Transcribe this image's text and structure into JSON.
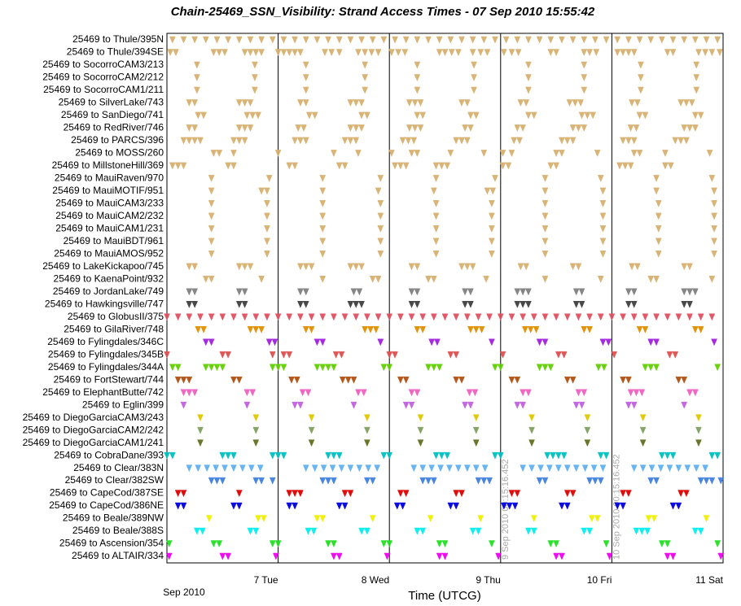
{
  "chart_data": {
    "type": "timeline",
    "title": "Chain-25469_SSN_Visibility:  Strand Access Times - 07 Sep 2010 15:55:42",
    "xlabel": "Time (UTCG)",
    "date_label": "Sep 2010",
    "xlim": [
      6,
      11
    ],
    "xticks": [
      {
        "value": 7,
        "label": "7 Tue"
      },
      {
        "value": 8,
        "label": "8 Wed"
      },
      {
        "value": 9,
        "label": "9 Thu"
      },
      {
        "value": 10,
        "label": "10 Fri"
      },
      {
        "value": 11,
        "label": "11 Sat"
      }
    ],
    "grid": true,
    "annotations": [
      {
        "text": "9 Sep 2010 00:15:16.452",
        "x": 9.01
      },
      {
        "text": "10 Sep 2010 00:15:16.452",
        "x": 10.01
      }
    ],
    "series": [
      {
        "name": "25469 to Thule/395N",
        "color": "#d8b070",
        "values": [
          6.05,
          6.15,
          6.25,
          6.35,
          6.45,
          6.55,
          6.65,
          6.75,
          6.85,
          6.95,
          7.05,
          7.15,
          7.25,
          7.35,
          7.45,
          7.55,
          7.65,
          7.75,
          7.85,
          7.95,
          8.05,
          8.15,
          8.25,
          8.35,
          8.45,
          8.55,
          8.65,
          8.75,
          8.85,
          8.95,
          9.05,
          9.15,
          9.25,
          9.35,
          9.45,
          9.55,
          9.65,
          9.75,
          9.85,
          9.95,
          10.05,
          10.15,
          10.25,
          10.35,
          10.45,
          10.55,
          10.65,
          10.75,
          10.85,
          10.95
        ]
      },
      {
        "name": "25469 to Thule/394SE",
        "color": "#d8b070",
        "values": [
          6.03,
          6.08,
          6.42,
          6.47,
          6.52,
          6.7,
          6.75,
          6.8,
          6.85,
          7.0,
          7.05,
          7.1,
          7.15,
          7.2,
          7.42,
          7.48,
          7.55,
          7.72,
          7.78,
          7.84,
          7.9,
          8.02,
          8.08,
          8.14,
          8.45,
          8.5,
          8.56,
          8.62,
          8.75,
          8.82,
          8.88,
          9.03,
          9.1,
          9.16,
          9.45,
          9.5,
          9.75,
          9.8,
          9.86,
          10.05,
          10.1,
          10.15,
          10.2,
          10.5,
          10.55,
          10.78,
          10.84,
          10.9,
          10.97
        ]
      },
      {
        "name": "25469 to SocorroCAM3/213",
        "color": "#d8b070",
        "values": [
          6.27,
          6.79,
          7.25,
          7.78,
          8.25,
          8.76,
          9.25,
          9.75,
          10.26,
          10.76
        ]
      },
      {
        "name": "25469 to SocorroCAM2/212",
        "color": "#d8b070",
        "values": [
          6.27,
          6.79,
          7.25,
          7.78,
          8.25,
          8.76,
          9.25,
          9.75,
          10.26,
          10.76
        ]
      },
      {
        "name": "25469 to SocorroCAM1/211",
        "color": "#d8b070",
        "values": [
          6.27,
          6.79,
          7.25,
          7.78,
          8.25,
          8.76,
          9.25,
          9.75,
          10.26,
          10.76
        ]
      },
      {
        "name": "25469 to SilverLake/743",
        "color": "#d8b070",
        "values": [
          6.2,
          6.25,
          6.65,
          6.7,
          6.75,
          7.2,
          7.25,
          7.65,
          7.7,
          7.75,
          8.18,
          8.23,
          8.28,
          8.65,
          8.7,
          9.18,
          9.23,
          9.62,
          9.67,
          9.72,
          10.18,
          10.23,
          10.62,
          10.67,
          10.72
        ]
      },
      {
        "name": "25469 to SanDiego/741",
        "color": "#d8b070",
        "values": [
          6.28,
          6.33,
          6.72,
          6.77,
          6.82,
          7.28,
          7.33,
          7.75,
          7.8,
          8.25,
          8.3,
          8.73,
          8.78,
          9.25,
          9.3,
          9.73,
          9.78,
          9.83,
          10.25,
          10.3,
          10.75,
          10.8
        ]
      },
      {
        "name": "25469 to RedRiver/746",
        "color": "#d8b070",
        "values": [
          6.2,
          6.25,
          6.65,
          6.7,
          6.75,
          7.18,
          7.23,
          7.65,
          7.7,
          7.75,
          8.18,
          8.23,
          8.28,
          8.68,
          8.73,
          9.15,
          9.2,
          9.65,
          9.7,
          9.75,
          10.17,
          10.22,
          10.65,
          10.7,
          10.75
        ]
      },
      {
        "name": "25469 to PARCS/396",
        "color": "#d8b070",
        "values": [
          6.15,
          6.2,
          6.25,
          6.3,
          6.6,
          6.65,
          6.7,
          7.15,
          7.2,
          7.25,
          7.6,
          7.65,
          7.7,
          8.12,
          8.17,
          8.22,
          8.6,
          8.65,
          8.7,
          9.12,
          9.17,
          9.55,
          9.6,
          9.65,
          10.1,
          10.15,
          10.2,
          10.57,
          10.62,
          10.67
        ]
      },
      {
        "name": "25469 to MOSS/260",
        "color": "#d8b070",
        "values": [
          6.42,
          6.47,
          6.6,
          7.0,
          7.5,
          7.72,
          8.02,
          8.2,
          8.25,
          8.55,
          8.85,
          9.02,
          9.1,
          9.5,
          9.55,
          9.87,
          10.2,
          10.25,
          10.48,
          10.88
        ]
      },
      {
        "name": "25469 to MillstoneHill/369",
        "color": "#d8b070",
        "values": [
          6.05,
          6.1,
          6.15,
          6.55,
          6.6,
          7.1,
          7.15,
          7.55,
          7.6,
          8.05,
          8.1,
          8.15,
          8.42,
          8.47,
          8.52,
          9.02,
          9.07,
          9.45,
          9.5,
          10.07,
          10.12,
          10.17,
          10.48,
          10.53
        ]
      },
      {
        "name": "25469 to MauiRaven/970",
        "color": "#d8b070",
        "values": [
          6.4,
          6.92,
          7.4,
          7.92,
          8.42,
          8.95,
          9.4,
          9.9,
          10.4,
          10.9
        ]
      },
      {
        "name": "25469 to MauiMOTIF/951",
        "color": "#d8b070",
        "values": [
          6.4,
          6.85,
          6.9,
          7.4,
          7.9,
          8.4,
          8.88,
          8.93,
          9.4,
          9.92,
          10.4,
          10.92
        ]
      },
      {
        "name": "25469 to MauiCAM3/233",
        "color": "#d8b070",
        "values": [
          6.4,
          6.9,
          7.4,
          7.92,
          8.42,
          8.92,
          9.4,
          9.92,
          10.42,
          10.92
        ]
      },
      {
        "name": "25469 to MauiCAM2/232",
        "color": "#d8b070",
        "values": [
          6.4,
          6.9,
          7.4,
          7.92,
          8.42,
          8.92,
          9.4,
          9.92,
          10.42,
          10.92
        ]
      },
      {
        "name": "25469 to MauiCAM1/231",
        "color": "#d8b070",
        "values": [
          6.4,
          6.9,
          7.4,
          7.92,
          8.42,
          8.92,
          9.4,
          9.92,
          10.42,
          10.92
        ]
      },
      {
        "name": "25469 to MauiBDT/961",
        "color": "#d8b070",
        "values": [
          6.4,
          6.9,
          7.4,
          7.92,
          8.42,
          8.92,
          9.4,
          9.92,
          10.42,
          10.92
        ]
      },
      {
        "name": "25469 to MauiAMOS/952",
        "color": "#d8b070",
        "values": [
          6.4,
          6.9,
          7.4,
          7.92,
          8.42,
          8.92,
          9.4,
          9.92,
          10.42,
          10.92
        ]
      },
      {
        "name": "25469 to LakeKickapoo/745",
        "color": "#d8b070",
        "values": [
          6.2,
          6.25,
          6.65,
          6.7,
          6.75,
          7.2,
          7.25,
          7.3,
          7.65,
          7.7,
          7.75,
          8.2,
          8.25,
          8.65,
          8.7,
          8.75,
          9.18,
          9.23,
          9.65,
          9.7,
          10.18,
          10.23,
          10.65,
          10.7
        ]
      },
      {
        "name": "25469 to KaenaPoint/932",
        "color": "#d8b070",
        "values": [
          6.35,
          6.4,
          6.85,
          7.4,
          7.85,
          7.9,
          8.35,
          8.4,
          8.87,
          9.4,
          9.9,
          10.35,
          10.4,
          10.9
        ]
      },
      {
        "name": "25469 to JordanLake/749",
        "color": "#808080",
        "values": [
          6.2,
          6.25,
          6.65,
          6.7,
          7.2,
          7.25,
          7.68,
          7.73,
          8.2,
          8.25,
          8.68,
          8.73,
          9.15,
          9.2,
          9.25,
          9.68,
          9.73,
          10.15,
          10.2,
          10.65,
          10.7,
          10.75
        ]
      },
      {
        "name": "25469 to Hawkingsville/747",
        "color": "#404040",
        "values": [
          6.2,
          6.25,
          6.65,
          6.7,
          7.2,
          7.25,
          7.65,
          7.7,
          7.75,
          8.2,
          8.25,
          8.68,
          8.73,
          9.15,
          9.2,
          9.25,
          9.68,
          9.73,
          10.15,
          10.2,
          10.65,
          10.7
        ]
      },
      {
        "name": "25469 to GlobusII/375",
        "color": "#e05060",
        "values": [
          6.0,
          6.1,
          6.2,
          6.3,
          6.4,
          6.5,
          6.6,
          6.7,
          6.8,
          6.9,
          7.0,
          7.1,
          7.2,
          7.3,
          7.4,
          7.5,
          7.6,
          7.7,
          7.8,
          7.9,
          8.0,
          8.1,
          8.2,
          8.3,
          8.4,
          8.5,
          8.6,
          8.7,
          8.8,
          8.9,
          9.0,
          9.1,
          9.2,
          9.3,
          9.4,
          9.5,
          9.6,
          9.7,
          9.8,
          9.9,
          10.0,
          10.1,
          10.2,
          10.3,
          10.4,
          10.5,
          10.6,
          10.7,
          10.8,
          10.9
        ]
      },
      {
        "name": "25469 to GilaRiver/748",
        "color": "#e09000",
        "values": [
          6.28,
          6.33,
          6.75,
          6.8,
          6.85,
          7.25,
          7.3,
          7.78,
          7.83,
          7.88,
          8.25,
          8.3,
          8.73,
          8.78,
          8.83,
          9.22,
          9.27,
          9.32,
          9.75,
          9.8,
          10.25,
          10.3,
          10.75,
          10.8
        ]
      },
      {
        "name": "25469 to Fylingdales/346C",
        "color": "#a020e0",
        "values": [
          6.35,
          6.4,
          6.92,
          6.97,
          7.35,
          7.4,
          7.92,
          8.38,
          8.43,
          8.92,
          9.35,
          9.4,
          9.92,
          9.97,
          10.35,
          10.4,
          10.92
        ]
      },
      {
        "name": "25469 to Fylingdales/345B",
        "color": "#e05050",
        "values": [
          6.0,
          6.5,
          6.55,
          6.95,
          7.05,
          7.1,
          7.52,
          7.57,
          8.0,
          8.05,
          8.55,
          8.6,
          9.02,
          9.52,
          9.57,
          10.02,
          10.52,
          10.57
        ]
      },
      {
        "name": "25469 to Fylingdales/344A",
        "color": "#60d000",
        "values": [
          6.05,
          6.1,
          6.35,
          6.4,
          6.45,
          6.5,
          6.95,
          7.0,
          7.05,
          7.35,
          7.4,
          7.45,
          7.5,
          7.95,
          8.0,
          8.35,
          8.4,
          8.45,
          8.95,
          9.0,
          9.35,
          9.4,
          9.45,
          9.88,
          9.93,
          10.3,
          10.35,
          10.4,
          10.95
        ]
      },
      {
        "name": "25469 to FortStewart/744",
        "color": "#b05010",
        "values": [
          6.1,
          6.15,
          6.2,
          6.6,
          6.65,
          7.12,
          7.17,
          7.58,
          7.63,
          7.68,
          8.1,
          8.15,
          8.6,
          8.65,
          9.1,
          9.15,
          9.6,
          9.65,
          10.1,
          10.15,
          10.6,
          10.65
        ]
      },
      {
        "name": "25469 to ElephantButte/742",
        "color": "#f060c0",
        "values": [
          6.15,
          6.2,
          6.25,
          6.72,
          6.77,
          7.22,
          7.27,
          7.72,
          7.77,
          8.2,
          8.25,
          8.72,
          8.77,
          9.2,
          9.25,
          9.7,
          9.75,
          10.17,
          10.22,
          10.27,
          10.7,
          10.75
        ]
      },
      {
        "name": "25469 to Eglin/399",
        "color": "#c060e0",
        "values": [
          6.15,
          6.72,
          7.15,
          7.2,
          7.68,
          8.15,
          8.2,
          8.68,
          8.73,
          9.15,
          9.2,
          9.68,
          9.73,
          10.15,
          10.2,
          10.65
        ]
      },
      {
        "name": "25469 to DiegoGarciaCAM3/243",
        "color": "#e0c800",
        "values": [
          6.3,
          6.8,
          7.3,
          7.8,
          8.28,
          8.78,
          9.28,
          9.78,
          10.28,
          10.78
        ]
      },
      {
        "name": "25469 to DiegoGarciaCAM2/242",
        "color": "#80a060",
        "values": [
          6.3,
          6.8,
          7.3,
          7.8,
          8.28,
          8.78,
          9.28,
          9.78,
          10.28,
          10.78
        ]
      },
      {
        "name": "25469 to DiegoGarciaCAM1/241",
        "color": "#607020",
        "values": [
          6.3,
          6.8,
          7.3,
          7.8,
          8.28,
          8.78,
          9.28,
          9.78,
          10.28,
          10.78
        ]
      },
      {
        "name": "25469 to CobraDane/393",
        "color": "#00c0c0",
        "values": [
          6.0,
          6.05,
          6.5,
          6.55,
          6.6,
          6.95,
          7.0,
          7.05,
          7.45,
          7.5,
          7.55,
          7.95,
          8.0,
          8.42,
          8.47,
          8.52,
          8.95,
          9.0,
          9.42,
          9.47,
          9.52,
          9.57,
          9.9,
          9.95,
          10.45,
          10.5,
          10.55,
          10.9,
          10.95
        ]
      },
      {
        "name": "25469 to Clear/383N",
        "color": "#60b0f0",
        "values": [
          6.2,
          6.28,
          6.36,
          6.44,
          6.52,
          6.6,
          6.68,
          6.76,
          6.84,
          7.25,
          7.33,
          7.41,
          7.49,
          7.57,
          7.65,
          7.73,
          7.81,
          7.89,
          8.22,
          8.3,
          8.38,
          8.46,
          8.54,
          8.62,
          8.7,
          8.78,
          8.86,
          9.2,
          9.28,
          9.36,
          9.44,
          9.52,
          9.6,
          9.68,
          9.76,
          9.84,
          9.92,
          10.2,
          10.28,
          10.36,
          10.44,
          10.52,
          10.6,
          10.68,
          10.76,
          10.84
        ]
      },
      {
        "name": "25469 to Clear/382SW",
        "color": "#4080e0",
        "values": [
          6.4,
          6.45,
          6.5,
          6.8,
          6.85,
          6.95,
          7.4,
          7.45,
          7.5,
          7.8,
          7.85,
          8.3,
          8.35,
          8.4,
          8.8,
          8.85,
          8.9,
          9.35,
          9.4,
          9.8,
          9.85,
          9.9,
          10.35,
          10.4,
          10.8,
          10.85,
          10.9,
          10.98
        ]
      },
      {
        "name": "25469 to CapeCod/387SE",
        "color": "#e00000",
        "values": [
          6.1,
          6.15,
          6.65,
          7.1,
          7.15,
          7.2,
          7.6,
          7.65,
          8.1,
          8.15,
          8.6,
          8.65,
          9.1,
          9.15,
          9.6,
          9.65,
          10.1,
          10.15,
          10.62,
          10.67
        ]
      },
      {
        "name": "25469 to CapeCod/386NE",
        "color": "#0000e0",
        "values": [
          6.1,
          6.15,
          6.6,
          6.65,
          7.1,
          7.15,
          7.55,
          7.6,
          8.07,
          8.12,
          8.55,
          8.6,
          9.03,
          9.08,
          9.13,
          9.55,
          9.6,
          10.05,
          10.1,
          10.55,
          10.6
        ]
      },
      {
        "name": "25469 to Beale/389NW",
        "color": "#f0f000",
        "values": [
          6.38,
          6.82,
          6.87,
          7.35,
          7.4,
          7.85,
          8.37,
          8.82,
          9.3,
          9.82,
          9.87,
          10.33,
          10.38,
          10.85
        ]
      },
      {
        "name": "25469 to Beale/388S",
        "color": "#00f0f0",
        "values": [
          6.27,
          6.32,
          6.75,
          6.8,
          7.27,
          7.32,
          7.75,
          7.8,
          8.25,
          8.3,
          8.75,
          8.8,
          9.25,
          9.3,
          9.75,
          9.8,
          10.22,
          10.27,
          10.32,
          10.75,
          10.8
        ]
      },
      {
        "name": "25469 to Ascension/354",
        "color": "#20e020",
        "values": [
          6.02,
          6.42,
          6.47,
          6.95,
          7.0,
          7.45,
          7.5,
          7.95,
          8.0,
          8.45,
          8.5,
          8.92,
          9.45,
          9.5,
          9.95,
          10.45,
          10.5,
          10.95
        ]
      },
      {
        "name": "25469 to ALTAIR/334",
        "color": "#f000f0",
        "values": [
          6.02,
          6.5,
          6.55,
          6.98,
          7.5,
          7.55,
          7.98,
          8.45,
          8.5,
          8.98,
          9.5,
          9.55,
          9.98,
          10.5,
          10.55,
          10.98
        ]
      }
    ]
  }
}
